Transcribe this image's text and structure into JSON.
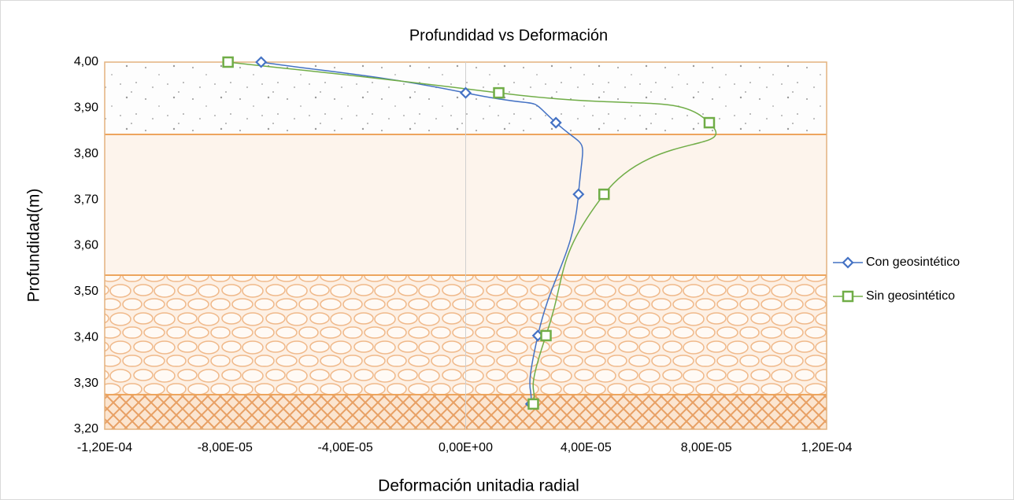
{
  "chart_data": {
    "type": "scatter",
    "title": "Profundidad vs Deformación",
    "x_label": "Deformación unitadia radial",
    "y_label": "Profundidad(m)",
    "xlim": [
      -0.00012,
      0.00012
    ],
    "ylim": [
      3.2,
      4.0
    ],
    "xticks": [
      {
        "value": -0.00012,
        "label": "-1,20E-04"
      },
      {
        "value": -8e-05,
        "label": "-8,00E-05"
      },
      {
        "value": -4e-05,
        "label": "-4,00E-05"
      },
      {
        "value": 0,
        "label": "0,00E+00"
      },
      {
        "value": 4e-05,
        "label": "4,00E-05"
      },
      {
        "value": 8e-05,
        "label": "8,00E-05"
      },
      {
        "value": 0.00012,
        "label": "1,20E-04"
      }
    ],
    "yticks": [
      {
        "value": 3.2,
        "label": "3,20"
      },
      {
        "value": 3.3,
        "label": "3,30"
      },
      {
        "value": 3.4,
        "label": "3,40"
      },
      {
        "value": 3.5,
        "label": "3,50"
      },
      {
        "value": 3.6,
        "label": "3,60"
      },
      {
        "value": 3.7,
        "label": "3,70"
      },
      {
        "value": 3.8,
        "label": "3,80"
      },
      {
        "value": 3.9,
        "label": "3,90"
      },
      {
        "value": 4.0,
        "label": "4,00"
      }
    ],
    "series": [
      {
        "name": "Con geosintético",
        "color": "#4472c4",
        "marker": "diamond",
        "x": [
          -6.8e-05,
          0.0,
          3e-05,
          3.75e-05,
          2.4e-05,
          2.17e-05
        ],
        "values": [
          4.0,
          3.933,
          3.868,
          3.712,
          3.404,
          3.255
        ]
      },
      {
        "name": "Sin geosintético",
        "color": "#70ad47",
        "marker": "square",
        "x": [
          -7.9e-05,
          1.1e-05,
          8.1e-05,
          4.6e-05,
          2.67e-05,
          2.25e-05
        ],
        "values": [
          4.0,
          3.933,
          3.868,
          3.712,
          3.404,
          3.255
        ]
      }
    ]
  }
}
